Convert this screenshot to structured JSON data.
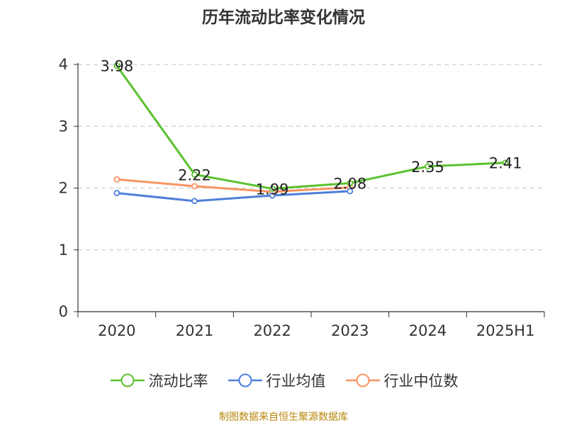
{
  "title": "历年流动比率变化情况",
  "source": "制图数据来自恒生聚源数据库",
  "chart_data": {
    "type": "line",
    "title": "历年流动比率变化情况",
    "categories": [
      "2020",
      "2021",
      "2022",
      "2023",
      "2024",
      "2025H1"
    ],
    "ylim": [
      0,
      4
    ],
    "yticks": [
      0,
      1,
      2,
      3,
      4
    ],
    "grid": true,
    "legend_position": "bottom",
    "series": [
      {
        "name": "流动比率",
        "color": "#5ac12e",
        "values": [
          3.98,
          2.22,
          1.99,
          2.08,
          2.35,
          2.41
        ],
        "labels": [
          "3.98",
          "2.22",
          "1.99",
          "2.08",
          "2.35",
          "2.41"
        ]
      },
      {
        "name": "行业均值",
        "color": "#4e7fd9",
        "values": [
          1.92,
          1.79,
          1.88,
          1.95,
          null,
          null
        ]
      },
      {
        "name": "行业中位数",
        "color": "#f79462",
        "values": [
          2.14,
          2.03,
          1.94,
          2.01,
          null,
          null
        ]
      }
    ]
  }
}
